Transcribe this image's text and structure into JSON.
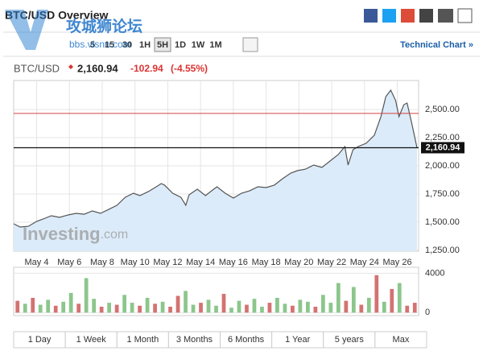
{
  "header": {
    "title": "BTC/USD Overview",
    "intervals": [
      "5",
      "15",
      "30",
      "1H",
      "5H",
      "1D",
      "1W",
      "1M"
    ],
    "selected_interval": "5H",
    "technical_link": "Technical Chart »",
    "symbol": "BTC/USD",
    "price": "2,160.94",
    "change": "-102.94",
    "change_pct": "(-4.55%)"
  },
  "watermark": {
    "site_name": "攻城狮论坛",
    "site_url": "bbs.vlsnn.com",
    "logo_main": "Investing",
    "logo_suffix": ".com"
  },
  "chart_data": {
    "type": "area",
    "x": [
      2.6,
      3.0,
      3.5,
      4.0,
      4.4,
      4.9,
      5.4,
      5.9,
      6.4,
      6.9,
      7.4,
      7.9,
      8.4,
      8.9,
      9.4,
      9.9,
      10.3,
      10.8,
      11.3,
      11.6,
      11.8,
      12.3,
      12.8,
      13.1,
      13.3,
      13.8,
      14.3,
      14.6,
      15.0,
      15.5,
      16.0,
      16.5,
      17.0,
      17.5,
      18.0,
      18.5,
      19.0,
      19.5,
      19.9,
      20.4,
      20.9,
      21.4,
      21.9,
      22.4,
      22.8,
      23.0,
      23.3,
      23.6,
      24.1,
      24.6,
      25.0,
      25.3,
      25.6,
      25.9,
      26.1,
      26.4,
      26.6,
      26.9,
      27.2
    ],
    "values": [
      1486,
      1457,
      1464,
      1507,
      1529,
      1557,
      1543,
      1564,
      1579,
      1571,
      1600,
      1579,
      1614,
      1650,
      1721,
      1757,
      1736,
      1771,
      1814,
      1843,
      1829,
      1757,
      1721,
      1650,
      1743,
      1793,
      1736,
      1771,
      1814,
      1757,
      1714,
      1757,
      1779,
      1814,
      1807,
      1829,
      1886,
      1936,
      1957,
      1971,
      2007,
      1986,
      2043,
      2100,
      2171,
      2007,
      2143,
      2171,
      2200,
      2271,
      2436,
      2614,
      2671,
      2579,
      2436,
      2543,
      2557,
      2364,
      2160.94
    ],
    "color": "#555555",
    "fill": "#dcebf9",
    "xlim": [
      2.6,
      27.3
    ],
    "xticks": [
      {
        "value": 4,
        "label": "May 4"
      },
      {
        "value": 6,
        "label": "May 6"
      },
      {
        "value": 8,
        "label": "May 8"
      },
      {
        "value": 10,
        "label": "May 10"
      },
      {
        "value": 12,
        "label": "May 12"
      },
      {
        "value": 14,
        "label": "May 14"
      },
      {
        "value": 16,
        "label": "May 16"
      },
      {
        "value": 18,
        "label": "May 18"
      },
      {
        "value": 20,
        "label": "May 20"
      },
      {
        "value": 22,
        "label": "May 22"
      },
      {
        "value": 24,
        "label": "May 24"
      },
      {
        "value": 26,
        "label": "May 26"
      }
    ],
    "ylim": [
      1243,
      2757
    ],
    "yticks": [
      {
        "value": 1250,
        "label": "1,250.00"
      },
      {
        "value": 1500,
        "label": "1,500.00"
      },
      {
        "value": 1750,
        "label": "1,750.00"
      },
      {
        "value": 2000,
        "label": "2,000.00"
      },
      {
        "value": 2250,
        "label": "2,250.00"
      },
      {
        "value": 2500,
        "label": "2,500.00"
      }
    ],
    "grid": true,
    "reference_line": {
      "value": 2465,
      "color": "#d04040"
    },
    "last_price": {
      "value": 2160.94,
      "label": "2,160.94"
    },
    "volume": {
      "values": [
        1200,
        900,
        1500,
        800,
        1300,
        700,
        1100,
        2000,
        900,
        3500,
        1400,
        600,
        1000,
        800,
        1800,
        1000,
        700,
        1500,
        900,
        1100,
        600,
        1700,
        2200,
        800,
        1000,
        1300,
        700,
        1900,
        500,
        1200,
        800,
        1400,
        600,
        1000,
        1500,
        900,
        700,
        1300,
        1100,
        600,
        1800,
        1000,
        3000,
        1200,
        2600,
        800,
        1500,
        3800,
        1100,
        2400,
        3000,
        700,
        1000
      ],
      "colors": [
        "#d47272",
        "#8cc68c",
        "#d47272",
        "#8cc68c",
        "#8cc68c",
        "#d47272",
        "#8cc68c",
        "#8cc68c",
        "#d47272",
        "#8cc68c",
        "#8cc68c",
        "#d47272",
        "#8cc68c",
        "#d47272",
        "#8cc68c",
        "#8cc68c",
        "#d47272",
        "#8cc68c",
        "#d47272",
        "#8cc68c",
        "#d47272",
        "#d47272",
        "#8cc68c",
        "#8cc68c",
        "#d47272",
        "#8cc68c",
        "#8cc68c",
        "#d47272",
        "#8cc68c",
        "#8cc68c",
        "#d47272",
        "#8cc68c",
        "#8cc68c",
        "#d47272",
        "#8cc68c",
        "#8cc68c",
        "#d47272",
        "#8cc68c",
        "#8cc68c",
        "#d47272",
        "#8cc68c",
        "#8cc68c",
        "#8cc68c",
        "#d47272",
        "#8cc68c",
        "#d47272",
        "#8cc68c",
        "#d47272",
        "#8cc68c",
        "#d47272",
        "#8cc68c",
        "#d47272",
        "#d47272"
      ],
      "ylim": [
        -300,
        4600
      ],
      "yticks": [
        0,
        4000
      ]
    }
  },
  "ranges": [
    "1 Day",
    "1 Week",
    "1 Month",
    "3 Months",
    "6 Months",
    "1 Year",
    "5 years",
    "Max"
  ]
}
